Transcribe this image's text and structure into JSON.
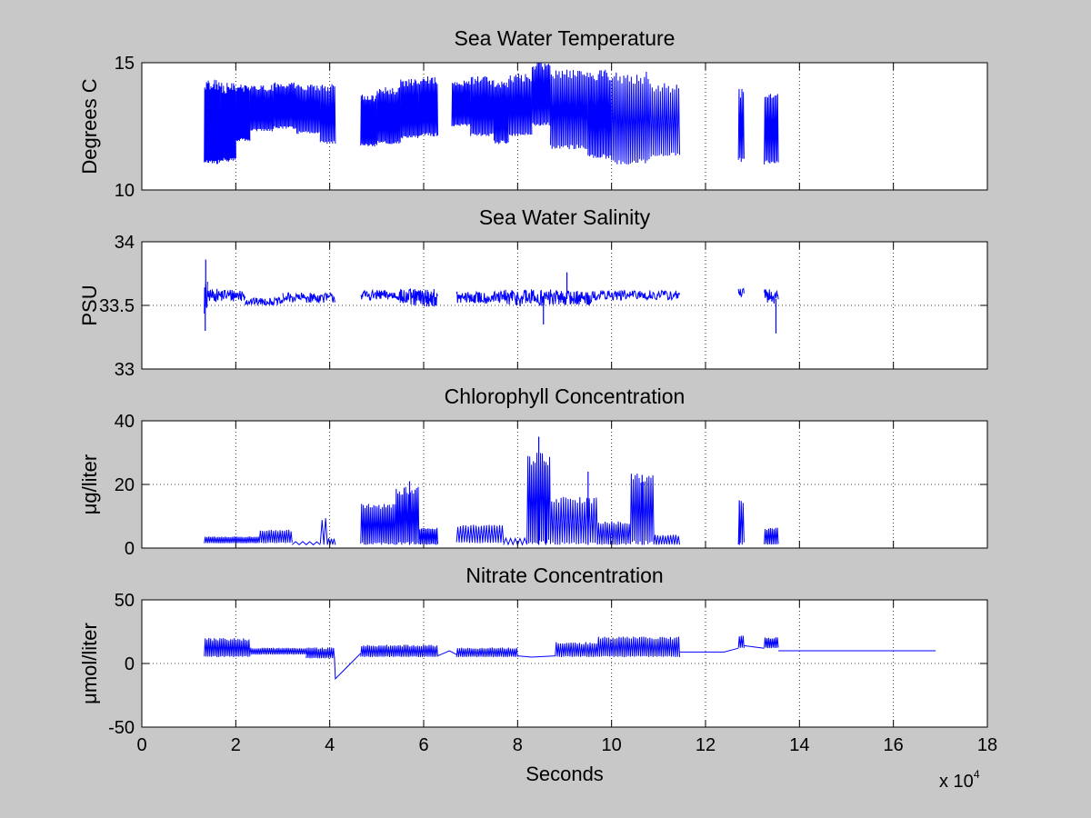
{
  "figure": {
    "background": "#c8c8c8",
    "axes_background": "#ffffff",
    "line_color": "#0000ff",
    "x_multiplier_label": "x 10",
    "x_multiplier_exp": "4"
  },
  "chart_data": [
    {
      "type": "line",
      "title": "Sea Water Temperature",
      "xlabel": "",
      "ylabel": "Degrees C",
      "xlim": [
        0,
        18
      ],
      "ylim": [
        10,
        15
      ],
      "xticks": [
        0,
        2,
        4,
        6,
        8,
        10,
        12,
        14,
        16,
        18
      ],
      "xtick_labels": [
        "",
        "",
        "",
        "",
        "",
        "",
        "",
        "",
        "",
        ""
      ],
      "yticks": [
        10,
        15
      ],
      "ytick_labels": [
        "10",
        "15"
      ],
      "grid": true,
      "style": "oscillating",
      "segments": [
        {
          "x0": 1.33,
          "x1": 1.67,
          "lo": 11.0,
          "hi": 14.1,
          "freq": 36
        },
        {
          "x0": 1.67,
          "x1": 2.0,
          "lo": 11.1,
          "hi": 14.0,
          "freq": 34
        },
        {
          "x0": 2.0,
          "x1": 2.3,
          "lo": 11.9,
          "hi": 14.0,
          "freq": 30
        },
        {
          "x0": 2.3,
          "x1": 2.8,
          "lo": 12.3,
          "hi": 14.0,
          "freq": 40
        },
        {
          "x0": 2.8,
          "x1": 3.3,
          "lo": 12.4,
          "hi": 14.1,
          "freq": 40
        },
        {
          "x0": 3.3,
          "x1": 3.8,
          "lo": 12.2,
          "hi": 14.0,
          "freq": 36
        },
        {
          "x0": 3.8,
          "x1": 4.12,
          "lo": 11.8,
          "hi": 14.0,
          "freq": 22
        },
        {
          "x0": 4.66,
          "x1": 5.0,
          "lo": 11.7,
          "hi": 13.6,
          "freq": 30
        },
        {
          "x0": 5.0,
          "x1": 5.5,
          "lo": 11.8,
          "hi": 13.9,
          "freq": 40
        },
        {
          "x0": 5.5,
          "x1": 5.9,
          "lo": 12.0,
          "hi": 14.2,
          "freq": 32
        },
        {
          "x0": 5.9,
          "x1": 6.3,
          "lo": 12.1,
          "hi": 14.3,
          "freq": 32
        },
        {
          "x0": 6.6,
          "x1": 7.0,
          "lo": 12.5,
          "hi": 14.2,
          "freq": 32
        },
        {
          "x0": 7.0,
          "x1": 7.5,
          "lo": 12.1,
          "hi": 14.3,
          "freq": 36
        },
        {
          "x0": 7.5,
          "x1": 7.8,
          "lo": 11.8,
          "hi": 14.2,
          "freq": 24
        },
        {
          "x0": 7.8,
          "x1": 8.3,
          "lo": 12.1,
          "hi": 14.4,
          "freq": 34
        },
        {
          "x0": 8.3,
          "x1": 8.7,
          "lo": 12.5,
          "hi": 14.9,
          "freq": 30
        },
        {
          "x0": 8.7,
          "x1": 9.5,
          "lo": 11.6,
          "hi": 14.6,
          "freq": 48
        },
        {
          "x0": 9.5,
          "x1": 10.0,
          "lo": 11.2,
          "hi": 14.5,
          "freq": 34
        },
        {
          "x0": 10.0,
          "x1": 10.8,
          "lo": 11.0,
          "hi": 14.4,
          "freq": 40
        },
        {
          "x0": 10.8,
          "x1": 11.45,
          "lo": 11.3,
          "hi": 14.0,
          "freq": 30
        },
        {
          "x0": 12.7,
          "x1": 12.82,
          "lo": 11.1,
          "hi": 13.8,
          "freq": 8
        },
        {
          "x0": 13.25,
          "x1": 13.55,
          "lo": 11.0,
          "hi": 13.6,
          "freq": 20
        }
      ]
    },
    {
      "type": "line",
      "title": "Sea Water Salinity",
      "xlabel": "",
      "ylabel": "PSU",
      "xlim": [
        0,
        18
      ],
      "ylim": [
        33,
        34
      ],
      "xticks": [
        0,
        2,
        4,
        6,
        8,
        10,
        12,
        14,
        16,
        18
      ],
      "xtick_labels": [
        "",
        "",
        "",
        "",
        "",
        "",
        "",
        "",
        "",
        ""
      ],
      "yticks": [
        33,
        33.5,
        34
      ],
      "ytick_labels": [
        "33",
        "33.5",
        "34"
      ],
      "grid": true,
      "style": "noise",
      "segments": [
        {
          "x0": 1.33,
          "x1": 1.4,
          "base": 33.55,
          "amp": 0.14,
          "freq": 10
        },
        {
          "x0": 1.4,
          "x1": 2.2,
          "base": 33.58,
          "amp": 0.05,
          "freq": 80
        },
        {
          "x0": 2.2,
          "x1": 3.0,
          "base": 33.53,
          "amp": 0.03,
          "freq": 70
        },
        {
          "x0": 3.0,
          "x1": 4.12,
          "base": 33.56,
          "amp": 0.04,
          "freq": 90
        },
        {
          "x0": 4.66,
          "x1": 5.5,
          "base": 33.58,
          "amp": 0.04,
          "freq": 80
        },
        {
          "x0": 5.5,
          "x1": 6.3,
          "base": 33.56,
          "amp": 0.07,
          "freq": 80
        },
        {
          "x0": 6.7,
          "x1": 7.7,
          "base": 33.56,
          "amp": 0.05,
          "freq": 90
        },
        {
          "x0": 7.7,
          "x1": 8.8,
          "base": 33.56,
          "amp": 0.07,
          "freq": 100
        },
        {
          "x0": 8.8,
          "x1": 9.6,
          "base": 33.56,
          "amp": 0.06,
          "freq": 80
        },
        {
          "x0": 9.6,
          "x1": 11.45,
          "base": 33.58,
          "amp": 0.04,
          "freq": 140
        },
        {
          "x0": 12.7,
          "x1": 12.82,
          "base": 33.6,
          "amp": 0.04,
          "freq": 12
        },
        {
          "x0": 13.25,
          "x1": 13.55,
          "base": 33.57,
          "amp": 0.06,
          "freq": 30
        }
      ],
      "spikes": [
        {
          "x": 1.36,
          "y": 33.86
        },
        {
          "x": 1.35,
          "y": 33.3
        },
        {
          "x": 9.05,
          "y": 33.76
        },
        {
          "x": 8.55,
          "y": 33.35
        },
        {
          "x": 13.5,
          "y": 33.28
        }
      ]
    },
    {
      "type": "line",
      "title": "Chlorophyll Concentration",
      "xlabel": "",
      "ylabel": "μg/liter",
      "xlim": [
        0,
        18
      ],
      "ylim": [
        0,
        40
      ],
      "xticks": [
        0,
        2,
        4,
        6,
        8,
        10,
        12,
        14,
        16,
        18
      ],
      "xtick_labels": [
        "",
        "",
        "",
        "",
        "",
        "",
        "",
        "",
        "",
        ""
      ],
      "yticks": [
        0,
        20,
        40
      ],
      "ytick_labels": [
        "0",
        "20",
        "40"
      ],
      "grid": true,
      "style": "oscillating",
      "segments": [
        {
          "x0": 1.33,
          "x1": 2.5,
          "lo": 1.5,
          "hi": 3.5,
          "freq": 60
        },
        {
          "x0": 2.5,
          "x1": 3.2,
          "lo": 1.5,
          "hi": 5.5,
          "freq": 30
        },
        {
          "x0": 3.2,
          "x1": 3.8,
          "lo": 1.0,
          "hi": 2.0,
          "freq": 8
        },
        {
          "x0": 3.8,
          "x1": 3.95,
          "lo": 1.0,
          "hi": 9.0,
          "freq": 4
        },
        {
          "x0": 3.95,
          "x1": 4.12,
          "lo": 1.0,
          "hi": 3.0,
          "freq": 6
        },
        {
          "x0": 4.66,
          "x1": 5.4,
          "lo": 1.0,
          "hi": 13.0,
          "freq": 40
        },
        {
          "x0": 5.4,
          "x1": 5.9,
          "lo": 1.0,
          "hi": 18.0,
          "freq": 30
        },
        {
          "x0": 5.9,
          "x1": 6.3,
          "lo": 1.0,
          "hi": 6.0,
          "freq": 24
        },
        {
          "x0": 6.7,
          "x1": 7.7,
          "lo": 1.5,
          "hi": 7.0,
          "freq": 36
        },
        {
          "x0": 7.7,
          "x1": 8.2,
          "lo": 1.0,
          "hi": 3.0,
          "freq": 10
        },
        {
          "x0": 8.2,
          "x1": 8.7,
          "lo": 1.0,
          "hi": 28.0,
          "freq": 26
        },
        {
          "x0": 8.7,
          "x1": 9.7,
          "lo": 1.0,
          "hi": 15.0,
          "freq": 40
        },
        {
          "x0": 9.7,
          "x1": 10.4,
          "lo": 1.0,
          "hi": 8.0,
          "freq": 30
        },
        {
          "x0": 10.4,
          "x1": 10.9,
          "lo": 1.0,
          "hi": 22.0,
          "freq": 24
        },
        {
          "x0": 10.9,
          "x1": 11.45,
          "lo": 1.0,
          "hi": 4.0,
          "freq": 20
        },
        {
          "x0": 12.7,
          "x1": 12.82,
          "lo": 1.0,
          "hi": 14.0,
          "freq": 6
        },
        {
          "x0": 13.25,
          "x1": 13.55,
          "lo": 1.0,
          "hi": 6.0,
          "freq": 16
        }
      ],
      "spikes": [
        {
          "x": 8.45,
          "y": 35.0
        },
        {
          "x": 8.6,
          "y": 26.0
        },
        {
          "x": 9.5,
          "y": 24.0
        },
        {
          "x": 10.65,
          "y": 23.0
        },
        {
          "x": 5.7,
          "y": 21.0
        },
        {
          "x": 12.72,
          "y": 15.0
        }
      ]
    },
    {
      "type": "line",
      "title": "Nitrate Concentration",
      "xlabel": "Seconds",
      "ylabel": "μmol/liter",
      "xlim": [
        0,
        18
      ],
      "ylim": [
        -50,
        50
      ],
      "xticks": [
        0,
        2,
        4,
        6,
        8,
        10,
        12,
        14,
        16,
        18
      ],
      "xtick_labels": [
        "0",
        "2",
        "4",
        "6",
        "8",
        "10",
        "12",
        "14",
        "16",
        "18"
      ],
      "yticks": [
        -50,
        0,
        50
      ],
      "ytick_labels": [
        "-50",
        "0",
        "50"
      ],
      "grid": true,
      "style": "oscillating",
      "segments": [
        {
          "x0": 1.33,
          "x1": 2.3,
          "lo": 5.0,
          "hi": 19.0,
          "freq": 50
        },
        {
          "x0": 2.3,
          "x1": 3.5,
          "lo": 7.0,
          "hi": 12.0,
          "freq": 60
        },
        {
          "x0": 3.5,
          "x1": 4.1,
          "lo": 4.0,
          "hi": 12.0,
          "freq": 30
        },
        {
          "x0": 4.66,
          "x1": 6.3,
          "lo": 5.0,
          "hi": 14.0,
          "freq": 80
        },
        {
          "x0": 6.7,
          "x1": 8.0,
          "lo": 5.0,
          "hi": 12.0,
          "freq": 60
        },
        {
          "x0": 8.8,
          "x1": 9.7,
          "lo": 5.0,
          "hi": 16.0,
          "freq": 40
        },
        {
          "x0": 9.7,
          "x1": 11.45,
          "lo": 5.0,
          "hi": 20.0,
          "freq": 80
        },
        {
          "x0": 12.7,
          "x1": 12.82,
          "lo": 12.0,
          "hi": 22.0,
          "freq": 6
        },
        {
          "x0": 13.25,
          "x1": 13.55,
          "lo": 12.0,
          "hi": 20.0,
          "freq": 16
        }
      ],
      "lines": [
        [
          [
            4.1,
            5.0
          ],
          [
            4.12,
            -12.0
          ],
          [
            4.66,
            8.0
          ]
        ],
        [
          [
            6.3,
            6.0
          ],
          [
            6.55,
            10.0
          ],
          [
            6.7,
            7.0
          ]
        ],
        [
          [
            8.0,
            6.0
          ],
          [
            8.3,
            5.0
          ],
          [
            8.8,
            6.0
          ]
        ],
        [
          [
            11.45,
            9.0
          ],
          [
            12.4,
            9.0
          ],
          [
            12.7,
            12.0
          ]
        ],
        [
          [
            12.82,
            14.0
          ],
          [
            13.25,
            12.0
          ]
        ],
        [
          [
            13.55,
            10.0
          ],
          [
            16.9,
            10.0
          ]
        ]
      ]
    }
  ]
}
